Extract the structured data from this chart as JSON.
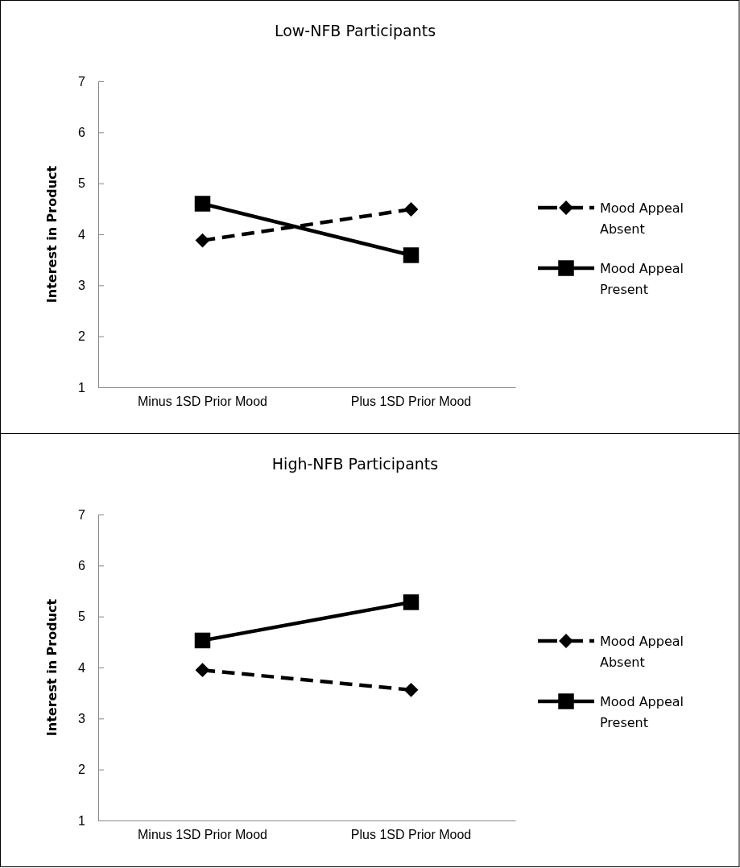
{
  "chart_data": [
    {
      "type": "line",
      "title": "Low-NFB Participants",
      "ylabel": "Interest in Product",
      "categories": [
        "Minus 1SD Prior Mood",
        "Plus 1SD Prior Mood"
      ],
      "ylim": [
        1,
        7
      ],
      "yticks": [
        1,
        2,
        3,
        4,
        5,
        6,
        7
      ],
      "grid": false,
      "legend": "right",
      "series": [
        {
          "name": "Mood Appeal Absent",
          "color": "#000000",
          "values": [
            3.88,
            4.49
          ],
          "marker": "diamond",
          "line_style": "dashed"
        },
        {
          "name": "Mood Appeal Present",
          "color": "#000000",
          "values": [
            4.6,
            3.59
          ],
          "marker": "square",
          "line_style": "solid"
        }
      ]
    },
    {
      "type": "line",
      "title": "High-NFB Participants",
      "ylabel": "Interest in Product",
      "categories": [
        "Minus 1SD Prior Mood",
        "Plus 1SD Prior Mood"
      ],
      "ylim": [
        1,
        7
      ],
      "yticks": [
        1,
        2,
        3,
        4,
        5,
        6,
        7
      ],
      "grid": false,
      "legend": "right",
      "series": [
        {
          "name": "Mood Appeal Absent",
          "color": "#000000",
          "values": [
            3.95,
            3.56
          ],
          "marker": "diamond",
          "line_style": "dashed"
        },
        {
          "name": "Mood Appeal Present",
          "color": "#000000",
          "values": [
            4.53,
            5.28
          ],
          "marker": "square",
          "line_style": "solid"
        }
      ]
    }
  ]
}
